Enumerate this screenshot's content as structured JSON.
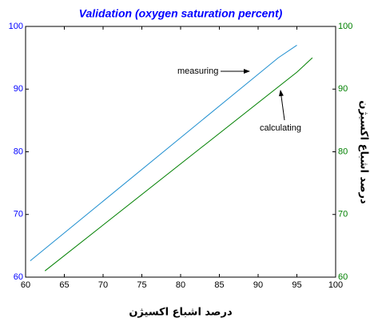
{
  "chart_data": {
    "type": "line",
    "title": "Validation (oxygen saturation percent)",
    "xlabel": "درصد اشباع اکسیژن",
    "y2label": "درصد اشباع اکسیژن",
    "xlim": [
      60,
      100
    ],
    "xticks": [
      60,
      65,
      70,
      75,
      80,
      85,
      90,
      95,
      100
    ],
    "ylim": [
      60,
      100
    ],
    "yticks": [
      60,
      70,
      80,
      90,
      100
    ],
    "y2lim": [
      60,
      100
    ],
    "y2ticks": [
      60,
      70,
      80,
      90,
      100
    ],
    "series": [
      {
        "name": "measuring",
        "color": "#1f8fd0",
        "x": [
          60.6,
          92.6,
          95
        ],
        "values": [
          62.6,
          95,
          97
        ]
      },
      {
        "name": "calculating",
        "color": "#008000",
        "axis": "y2",
        "x": [
          62.5,
          95,
          97
        ],
        "values": [
          61,
          92.7,
          95
        ]
      }
    ]
  }
}
